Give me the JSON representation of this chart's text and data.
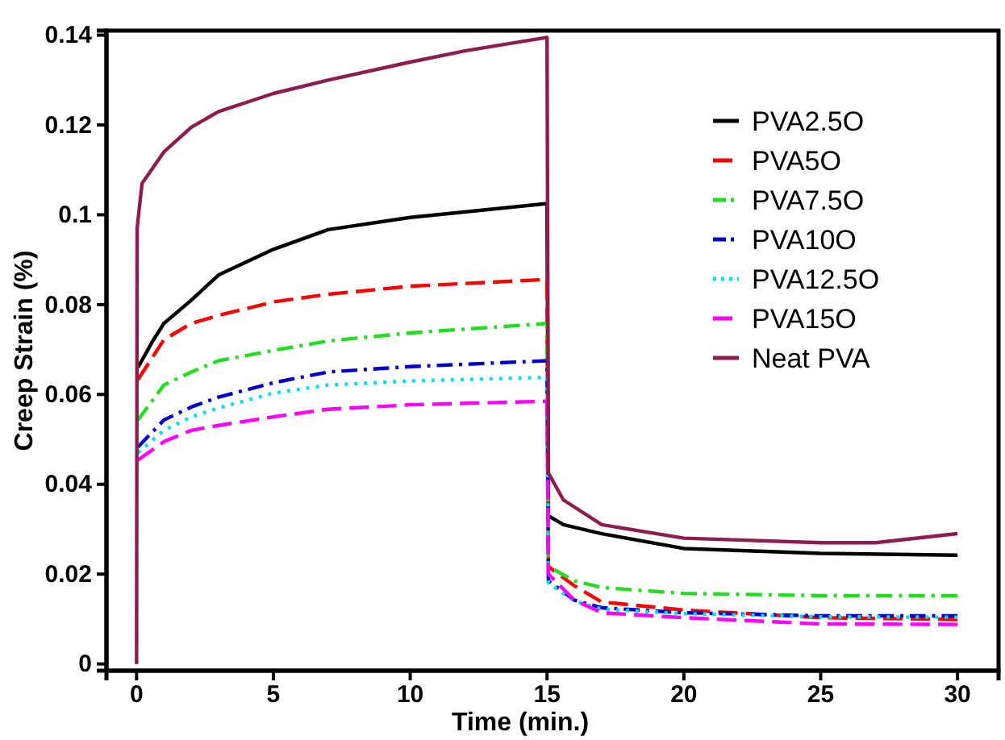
{
  "chart_data": {
    "type": "line",
    "xlabel": "Time (min.)",
    "ylabel": "Creep Strain (%)",
    "xlim": [
      -1.1,
      31.5
    ],
    "ylim": [
      -0.0015,
      0.141
    ],
    "xticks": [
      0,
      5,
      10,
      15,
      20,
      25,
      30
    ],
    "yticks": [
      0,
      0.02,
      0.04,
      0.06,
      0.08,
      0.1,
      0.12,
      0.14
    ],
    "grid": false,
    "legend": "top right",
    "series": [
      {
        "name": "PVA2.5O",
        "color": "#000000",
        "line_style": "solid",
        "x": [
          0.05,
          0.6,
          1,
          2,
          3,
          5,
          7,
          10,
          15,
          15.05,
          15.6,
          17,
          20,
          25,
          30
        ],
        "values": [
          0.066,
          0.072,
          0.0758,
          0.081,
          0.0866,
          0.0923,
          0.0967,
          0.0994,
          0.1025,
          0.033,
          0.031,
          0.029,
          0.0257,
          0.0246,
          0.0242
        ]
      },
      {
        "name": "PVA5O",
        "color": "#ff0000",
        "line_style": "dashed",
        "x": [
          0.05,
          1,
          2,
          3,
          5,
          7,
          10,
          15,
          15.05,
          16,
          17,
          20,
          25,
          30
        ],
        "values": [
          0.0633,
          0.0722,
          0.0758,
          0.0776,
          0.0806,
          0.0823,
          0.0841,
          0.0856,
          0.0217,
          0.0174,
          0.0138,
          0.012,
          0.0103,
          0.0099
        ]
      },
      {
        "name": "PVA7.5O",
        "color": "#22dd22",
        "line_style": "dashdot",
        "x": [
          0.05,
          1,
          2,
          3,
          5,
          7,
          10,
          15,
          15.05,
          16,
          17,
          20,
          25,
          30
        ],
        "values": [
          0.0543,
          0.0621,
          0.065,
          0.0675,
          0.0698,
          0.0719,
          0.0737,
          0.0758,
          0.0217,
          0.0185,
          0.017,
          0.0157,
          0.0152,
          0.0152
        ]
      },
      {
        "name": "PVA10O",
        "color": "#0000cc",
        "line_style": "dashdot",
        "x": [
          0.05,
          1,
          2,
          3,
          5,
          7,
          10,
          15,
          15.05,
          16,
          17,
          20,
          25,
          30
        ],
        "values": [
          0.0483,
          0.0543,
          0.0572,
          0.0594,
          0.0626,
          0.065,
          0.0662,
          0.0675,
          0.0185,
          0.0142,
          0.0125,
          0.0114,
          0.0107,
          0.0107
        ]
      },
      {
        "name": "PVA12.5O",
        "color": "#00e0ee",
        "line_style": "dotted",
        "x": [
          0.05,
          1,
          2,
          3,
          5,
          7,
          10,
          15,
          15.05,
          16,
          17,
          20,
          25,
          30
        ],
        "values": [
          0.047,
          0.052,
          0.055,
          0.057,
          0.0603,
          0.0621,
          0.063,
          0.0638,
          0.018,
          0.014,
          0.0122,
          0.0112,
          0.0105,
          0.0104
        ]
      },
      {
        "name": "PVA15O",
        "color": "#ff00ff",
        "line_style": "dashed",
        "x": [
          0.05,
          1,
          2,
          3,
          5,
          7,
          10,
          15,
          15.05,
          16,
          17,
          20,
          25,
          30
        ],
        "values": [
          0.0454,
          0.0495,
          0.052,
          0.0531,
          0.055,
          0.0567,
          0.0577,
          0.0585,
          0.02,
          0.0142,
          0.0114,
          0.0103,
          0.0089,
          0.0088
        ]
      },
      {
        "name": "Neat PVA",
        "color": "#8e1d4f",
        "line_style": "solid",
        "x": [
          0,
          0.02,
          0.2,
          1,
          2,
          3,
          5,
          7,
          10,
          12,
          15,
          15.05,
          15.6,
          17,
          20,
          25,
          27,
          30
        ],
        "values": [
          0,
          0.097,
          0.107,
          0.114,
          0.1195,
          0.123,
          0.127,
          0.13,
          0.134,
          0.1365,
          0.1395,
          0.0425,
          0.0365,
          0.031,
          0.028,
          0.027,
          0.027,
          0.029
        ]
      }
    ]
  }
}
